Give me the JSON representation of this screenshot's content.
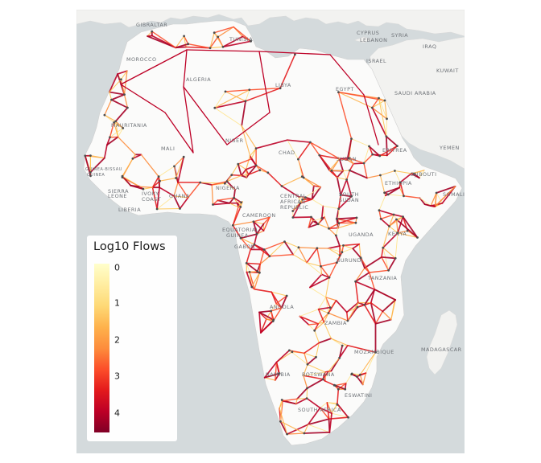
{
  "legend": {
    "title": "Log10 Flows",
    "ticks": [
      "0",
      "1",
      "2",
      "3",
      "4"
    ],
    "colors": [
      "#ffffcc",
      "#ffeda0",
      "#fed976",
      "#feb24c",
      "#fd8d3c",
      "#fc4e2a",
      "#e31a1c",
      "#bd0026",
      "#800026"
    ]
  },
  "colors": {
    "water": "#d4dadc",
    "land": "#f2f2f0",
    "africa": "#fbfbfa",
    "border": "#d9d9d9",
    "node": "#4d4d4d"
  },
  "labels": {
    "gibraltar": "GIBRALTAR",
    "tunisia": "TUNISIA",
    "morocco": "MOROCCO",
    "algeria": "ALGERIA",
    "libya": "LIBYA",
    "egypt": "EGYPT",
    "cyprus": "CYPRUS",
    "lebanon": "LEBANON",
    "syria": "SYRIA",
    "iraq": "IRAQ",
    "israel": "ISRAEL",
    "kuwait": "KUWAIT",
    "saudi": "SAUDI ARABIA",
    "mauritania": "MAURITANIA",
    "mali": "MALI",
    "niger": "NIGER",
    "chad": "CHAD",
    "sudan": "SUDAN",
    "eritrea": "ERITREA",
    "yemen": "YEMEN",
    "djibouti": "DJIBOUTI",
    "ethiopia": "ETHIOPIA",
    "somalia": "SOMALI",
    "guinea_bissau": "GUINEA-BISSAU",
    "guinea": "GUINEA",
    "sierra": "SIERRA",
    "leone": "LEONE",
    "liberia": "LIBERIA",
    "ivory1": "IVORY",
    "ivory2": "COAST",
    "ghana": "GHANA",
    "nigeria": "NIGERIA",
    "car1": "CENTRAL",
    "car2": "AFRICAN",
    "car3": "REPUBLIC",
    "south1": "SOUTH",
    "south2": "SUDAN",
    "cameroon": "CAMEROON",
    "eqg1": "EQUATORIAL",
    "eqg2": "GUINEA",
    "gabon": "GABON",
    "uganda": "UGANDA",
    "kenya": "KENYA",
    "burundi": "BURUNDI",
    "tanzania": "TANZANIA",
    "angola": "ANGOLA",
    "zambia": "ZAMBIA",
    "mozambique": "MOZAMBIQUE",
    "madagascar": "MADAGASCAR",
    "namibia": "NAMIBIA",
    "botswana": "BOTSWANA",
    "eswatini": "ESWATINI",
    "southafrica": "SOUTH AFRICA"
  }
}
